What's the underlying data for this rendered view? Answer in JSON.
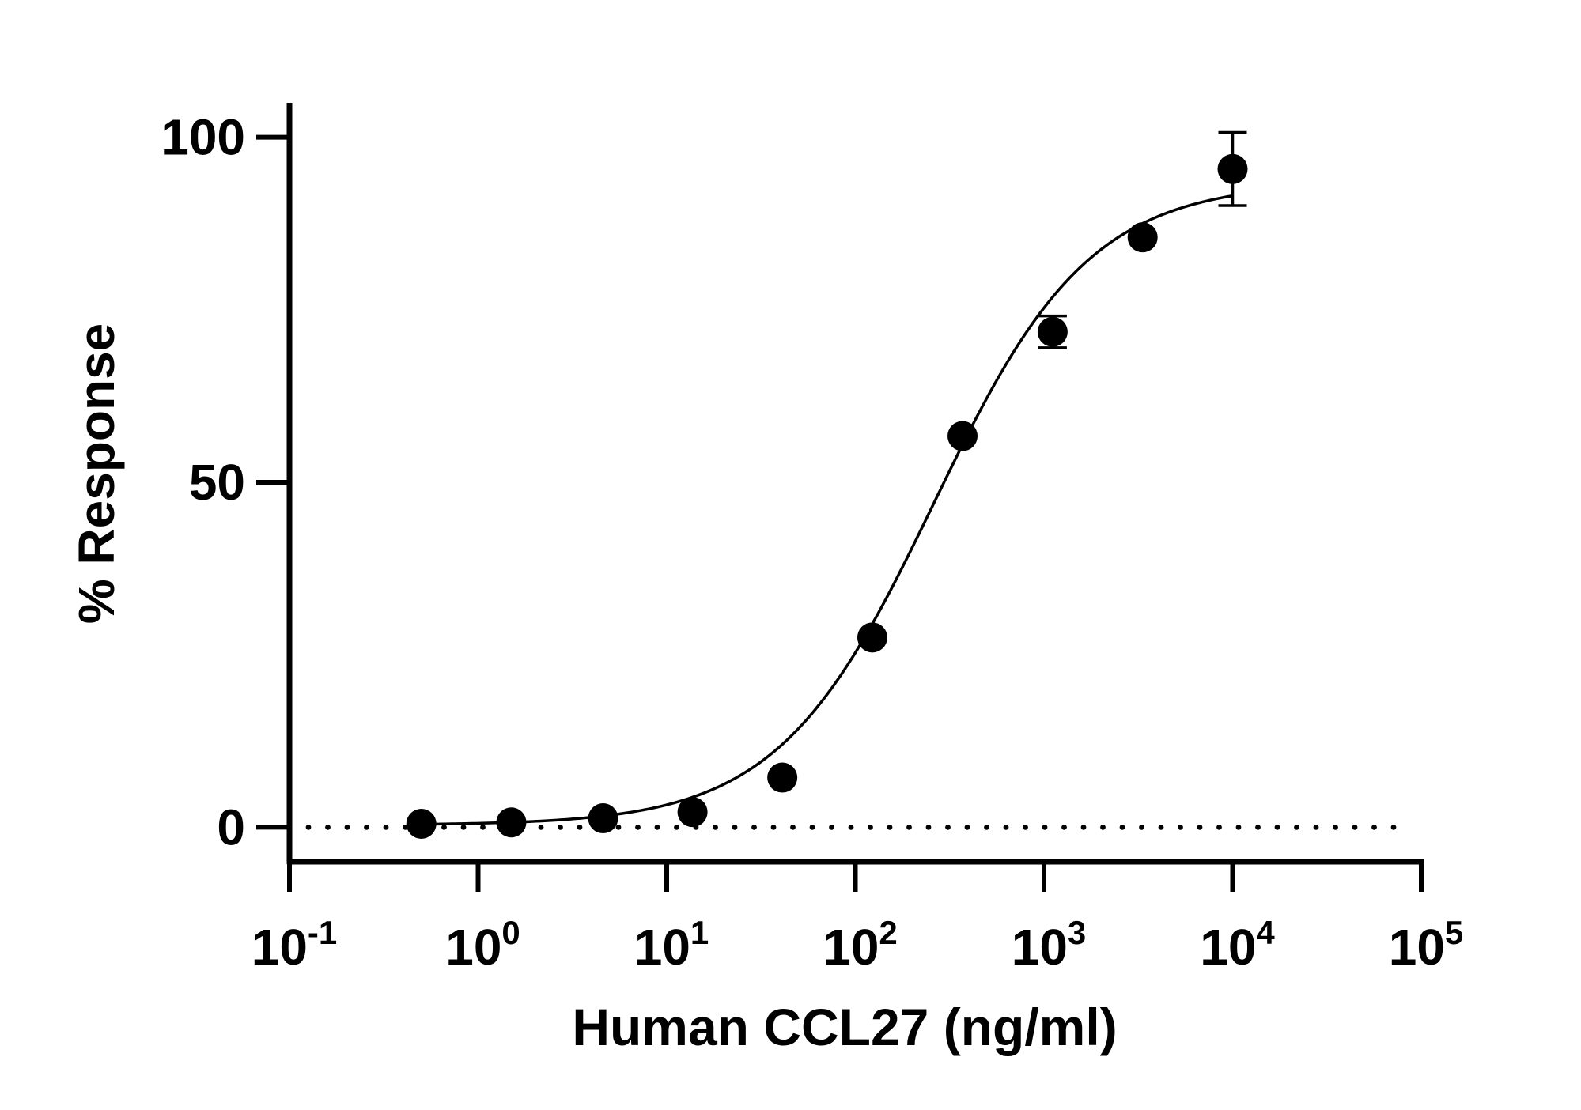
{
  "chart_data": {
    "type": "scatter",
    "title": "",
    "xlabel": "Human CCL27 (ng/ml)",
    "ylabel": "% Response",
    "x_scale": "log",
    "xlim": [
      0.1,
      100000
    ],
    "ylim": [
      -5,
      105
    ],
    "x_ticks": [
      {
        "value": 0.1,
        "base": "10",
        "exp": "-1"
      },
      {
        "value": 1,
        "base": "10",
        "exp": "0"
      },
      {
        "value": 10,
        "base": "10",
        "exp": "1"
      },
      {
        "value": 100,
        "base": "10",
        "exp": "2"
      },
      {
        "value": 1000,
        "base": "10",
        "exp": "3"
      },
      {
        "value": 10000,
        "base": "10",
        "exp": "4"
      },
      {
        "value": 100000,
        "base": "10",
        "exp": "5"
      }
    ],
    "y_ticks": [
      {
        "value": 0,
        "label": "0"
      },
      {
        "value": 50,
        "label": "50"
      },
      {
        "value": 100,
        "label": "100"
      }
    ],
    "grid": false,
    "legend": "none",
    "baseline": {
      "y": 0,
      "style": "dotted"
    },
    "series": [
      {
        "points": [
          {
            "x": 0.5,
            "y": 0.5,
            "err": 0
          },
          {
            "x": 1.5,
            "y": 0.7,
            "err": 0
          },
          {
            "x": 4.6,
            "y": 1.3,
            "err": 0
          },
          {
            "x": 13.7,
            "y": 2.2,
            "err": 0
          },
          {
            "x": 41,
            "y": 7.2,
            "err": 0
          },
          {
            "x": 123,
            "y": 27.5,
            "err": 0
          },
          {
            "x": 370,
            "y": 56.7,
            "err": 0
          },
          {
            "x": 1111,
            "y": 71.8,
            "err": 2.3
          },
          {
            "x": 3333,
            "y": 85.5,
            "err": 0
          },
          {
            "x": 10000,
            "y": 95.4,
            "err": 5.3
          }
        ]
      }
    ],
    "fit": {
      "model": "four-parameter logistic",
      "bottom": 0.3,
      "top": 93.5,
      "ec50": 260,
      "hill": 1.05,
      "x_range": [
        0.5,
        10000
      ]
    },
    "colors": {
      "marker": "#000000",
      "line": "#000000"
    }
  }
}
